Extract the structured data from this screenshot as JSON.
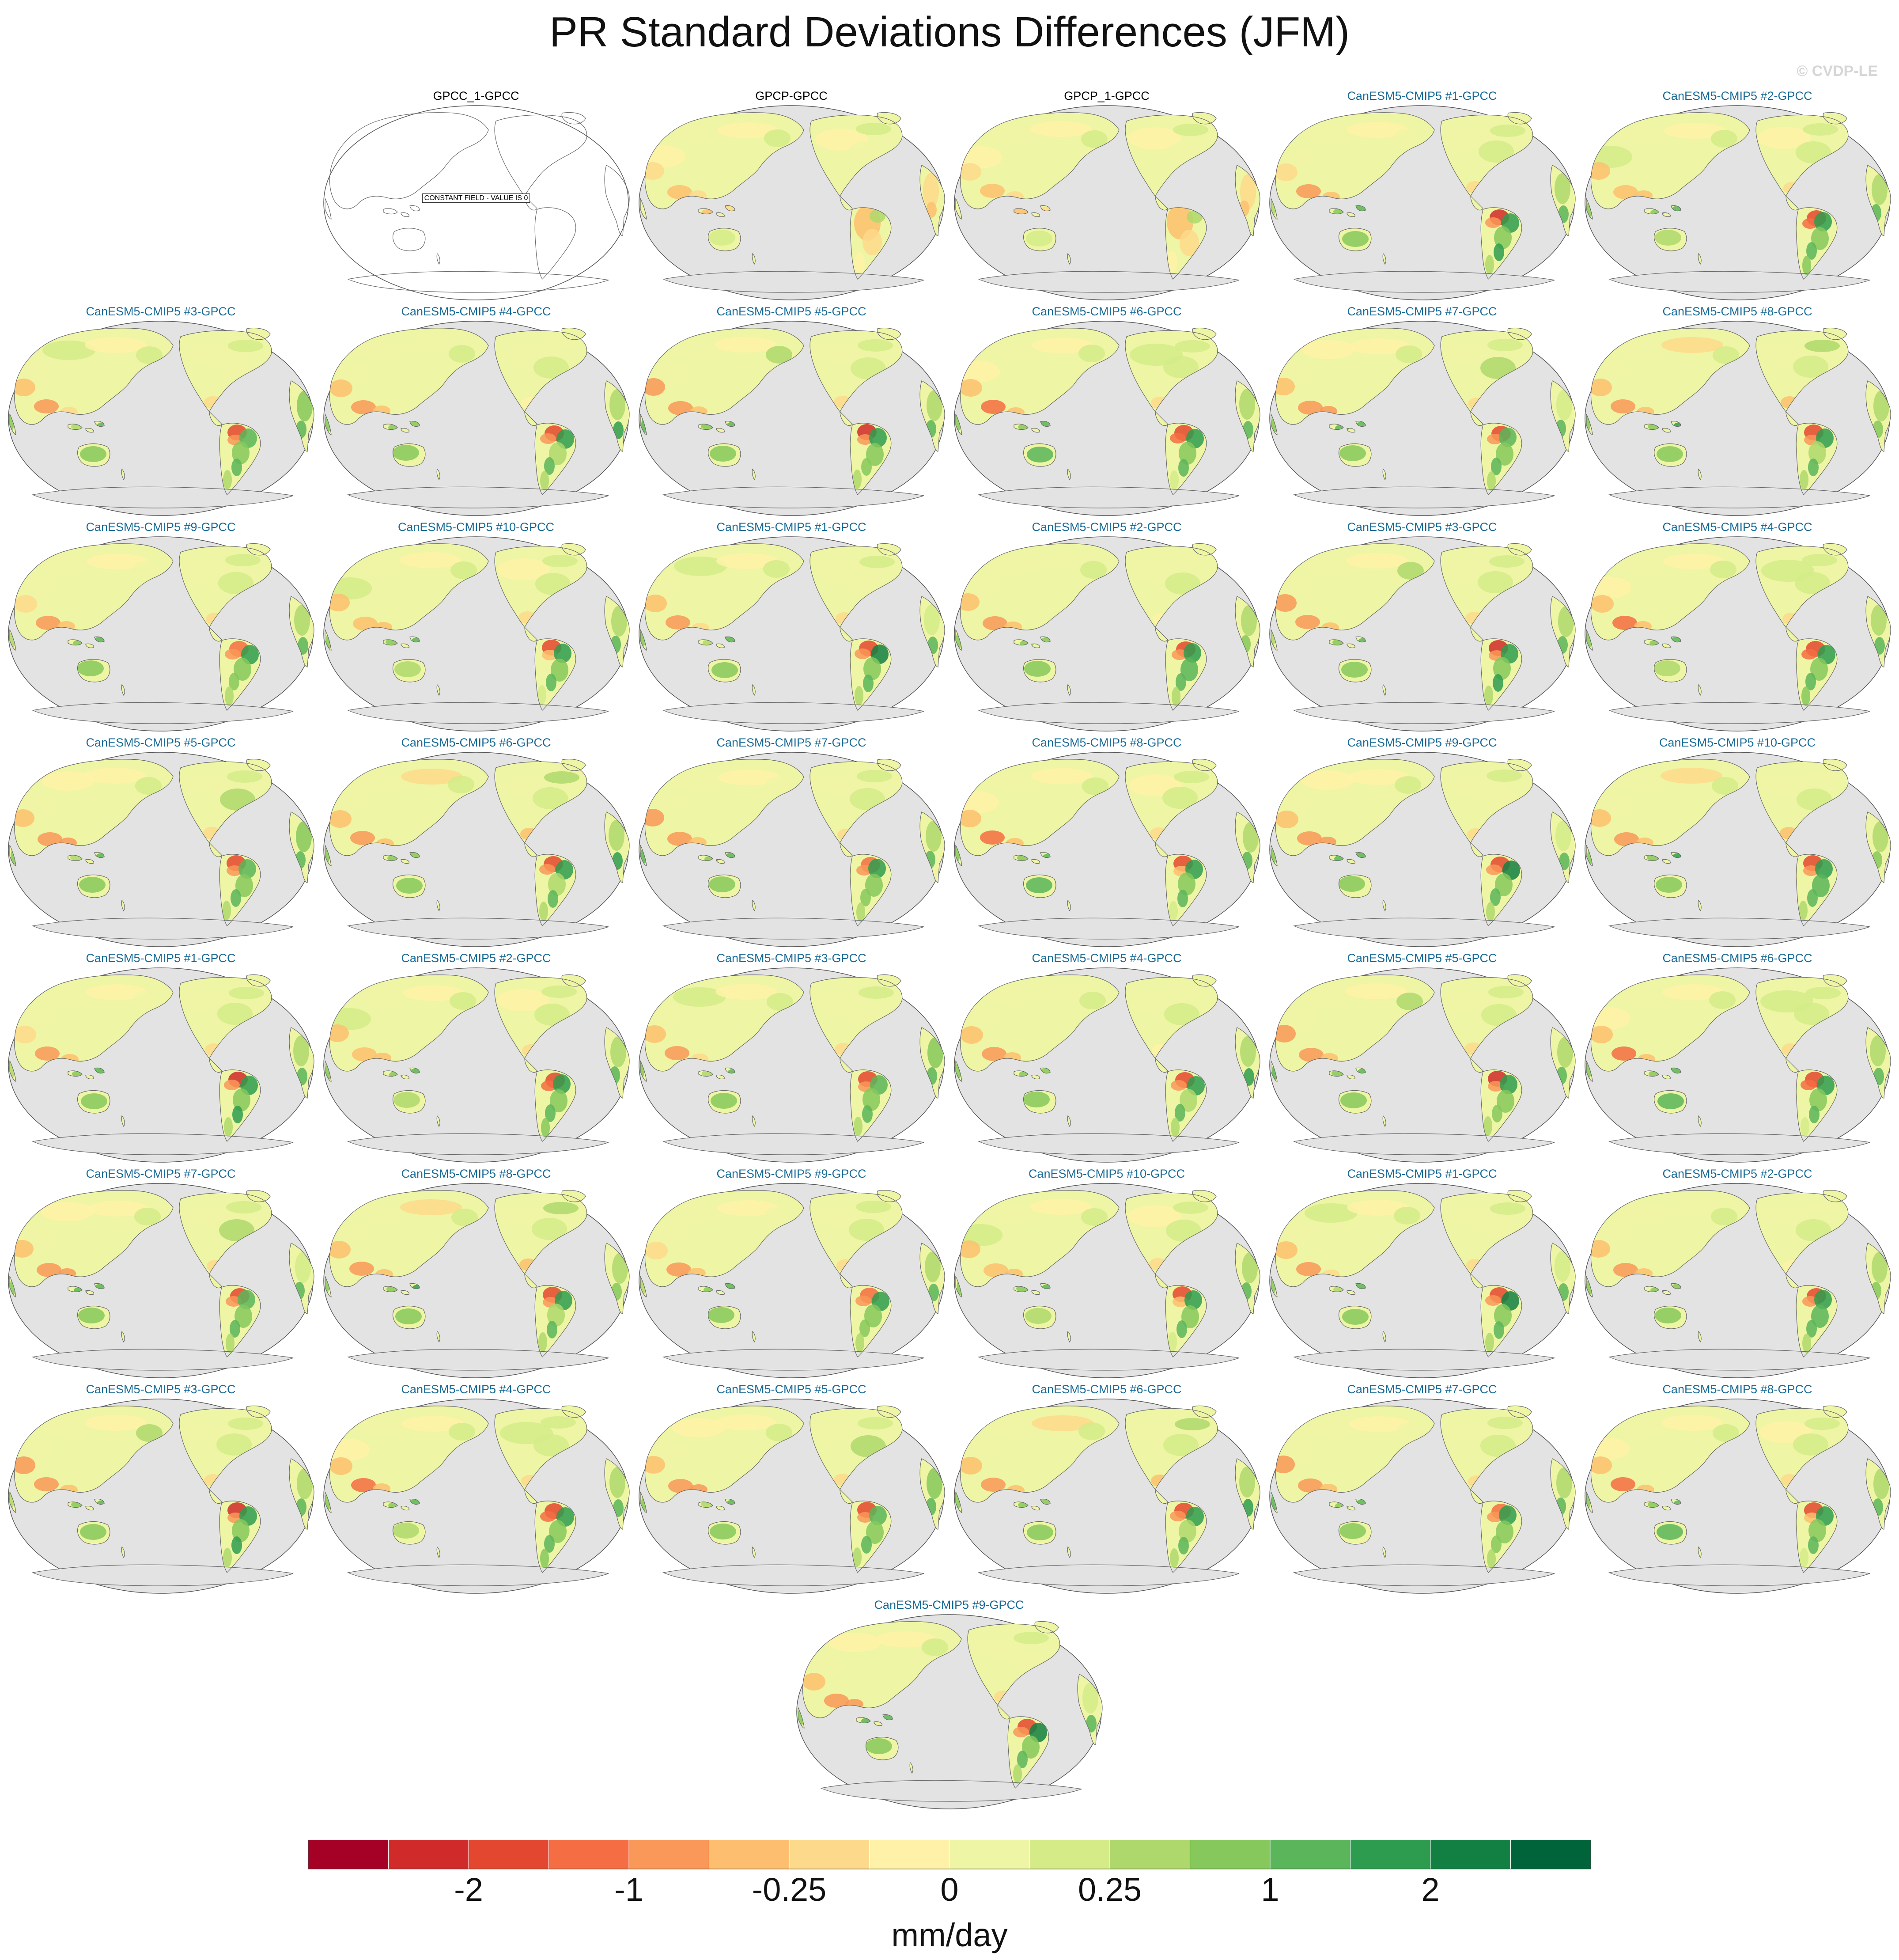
{
  "title": "PR Standard Deviations Differences (JFM)",
  "watermark": "© CVDP-LE",
  "obs_title_color": "#000000",
  "model_title_color": "#1a6b96",
  "ocean_color": "#e3e3e3",
  "coast_color": "#666666",
  "panels": [
    {
      "title": "GPCC_1-GPCC",
      "kind": "constant",
      "note": "CONSTANT FIELD - VALUE IS 0"
    },
    {
      "title": "GPCP-GPCC",
      "kind": "obs"
    },
    {
      "title": "GPCP_1-GPCC",
      "kind": "obs"
    },
    {
      "title": "CanESM5-CMIP5 #1-GPCC",
      "kind": "model"
    },
    {
      "title": "CanESM5-CMIP5 #2-GPCC",
      "kind": "model"
    },
    {
      "title": "CanESM5-CMIP5 #3-GPCC",
      "kind": "model"
    },
    {
      "title": "CanESM5-CMIP5 #4-GPCC",
      "kind": "model"
    },
    {
      "title": "CanESM5-CMIP5 #5-GPCC",
      "kind": "model"
    },
    {
      "title": "CanESM5-CMIP5 #6-GPCC",
      "kind": "model"
    },
    {
      "title": "CanESM5-CMIP5 #7-GPCC",
      "kind": "model"
    },
    {
      "title": "CanESM5-CMIP5 #8-GPCC",
      "kind": "model"
    },
    {
      "title": "CanESM5-CMIP5 #9-GPCC",
      "kind": "model"
    },
    {
      "title": "CanESM5-CMIP5 #10-GPCC",
      "kind": "model"
    },
    {
      "title": "CanESM5-CMIP5 #1-GPCC",
      "kind": "model"
    },
    {
      "title": "CanESM5-CMIP5 #2-GPCC",
      "kind": "model"
    },
    {
      "title": "CanESM5-CMIP5 #3-GPCC",
      "kind": "model"
    },
    {
      "title": "CanESM5-CMIP5 #4-GPCC",
      "kind": "model"
    },
    {
      "title": "CanESM5-CMIP5 #5-GPCC",
      "kind": "model"
    },
    {
      "title": "CanESM5-CMIP5 #6-GPCC",
      "kind": "model"
    },
    {
      "title": "CanESM5-CMIP5 #7-GPCC",
      "kind": "model"
    },
    {
      "title": "CanESM5-CMIP5 #8-GPCC",
      "kind": "model"
    },
    {
      "title": "CanESM5-CMIP5 #9-GPCC",
      "kind": "model"
    },
    {
      "title": "CanESM5-CMIP5 #10-GPCC",
      "kind": "model"
    },
    {
      "title": "CanESM5-CMIP5 #1-GPCC",
      "kind": "model"
    },
    {
      "title": "CanESM5-CMIP5 #2-GPCC",
      "kind": "model"
    },
    {
      "title": "CanESM5-CMIP5 #3-GPCC",
      "kind": "model"
    },
    {
      "title": "CanESM5-CMIP5 #4-GPCC",
      "kind": "model"
    },
    {
      "title": "CanESM5-CMIP5 #5-GPCC",
      "kind": "model"
    },
    {
      "title": "CanESM5-CMIP5 #6-GPCC",
      "kind": "model"
    },
    {
      "title": "CanESM5-CMIP5 #7-GPCC",
      "kind": "model"
    },
    {
      "title": "CanESM5-CMIP5 #8-GPCC",
      "kind": "model"
    },
    {
      "title": "CanESM5-CMIP5 #9-GPCC",
      "kind": "model"
    },
    {
      "title": "CanESM5-CMIP5 #10-GPCC",
      "kind": "model"
    },
    {
      "title": "CanESM5-CMIP5 #1-GPCC",
      "kind": "model"
    },
    {
      "title": "CanESM5-CMIP5 #2-GPCC",
      "kind": "model"
    },
    {
      "title": "CanESM5-CMIP5 #3-GPCC",
      "kind": "model"
    },
    {
      "title": "CanESM5-CMIP5 #4-GPCC",
      "kind": "model"
    },
    {
      "title": "CanESM5-CMIP5 #5-GPCC",
      "kind": "model"
    },
    {
      "title": "CanESM5-CMIP5 #6-GPCC",
      "kind": "model"
    },
    {
      "title": "CanESM5-CMIP5 #7-GPCC",
      "kind": "model"
    },
    {
      "title": "CanESM5-CMIP5 #8-GPCC",
      "kind": "model"
    },
    {
      "title": "CanESM5-CMIP5 #9-GPCC",
      "kind": "model"
    }
  ],
  "colorbar": {
    "colors": [
      "#a50026",
      "#d02a2a",
      "#e4472f",
      "#f46d43",
      "#f99858",
      "#fdbf6f",
      "#fdd98b",
      "#fff2a8",
      "#eef5a4",
      "#d4eb88",
      "#aed86c",
      "#86c85c",
      "#5bb55a",
      "#2e9c4f",
      "#128043",
      "#00643a"
    ],
    "labels": [
      {
        "boundary": 2,
        "text": "-2"
      },
      {
        "boundary": 4,
        "text": "-1"
      },
      {
        "boundary": 6,
        "text": "-0.25"
      },
      {
        "boundary": 8,
        "text": "0"
      },
      {
        "boundary": 10,
        "text": "0.25"
      },
      {
        "boundary": 12,
        "text": "1"
      },
      {
        "boundary": 14,
        "text": "2"
      }
    ],
    "unit": "mm/day"
  }
}
